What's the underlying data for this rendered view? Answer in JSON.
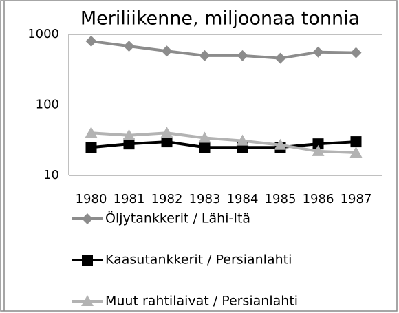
{
  "chart_data": {
    "type": "line",
    "title": "Meriliikenne, miljoonaa tonnia",
    "categories": [
      "1980",
      "1981",
      "1982",
      "1983",
      "1984",
      "1985",
      "1986",
      "1987"
    ],
    "series": [
      {
        "name": "Öljytankkerit / Lähi-Itä",
        "color": "#8c8c8c",
        "marker": "diamond",
        "values": [
          800,
          680,
          580,
          500,
          500,
          460,
          560,
          550
        ]
      },
      {
        "name": "Kaasutankkerit / Persianlahti",
        "color": "#000000",
        "marker": "square",
        "values": [
          25,
          28,
          30,
          25,
          25,
          25,
          28,
          30
        ]
      },
      {
        "name": "Muut rahtilaivat / Persianlahti",
        "color": "#b3b3b3",
        "marker": "triangle",
        "values": [
          40,
          37,
          40,
          34,
          31,
          27,
          22,
          21
        ]
      }
    ],
    "log_y": true,
    "ylim": [
      10,
      1000
    ],
    "yticks": [
      10,
      100,
      1000
    ],
    "grid": true,
    "legend": "bottom"
  }
}
